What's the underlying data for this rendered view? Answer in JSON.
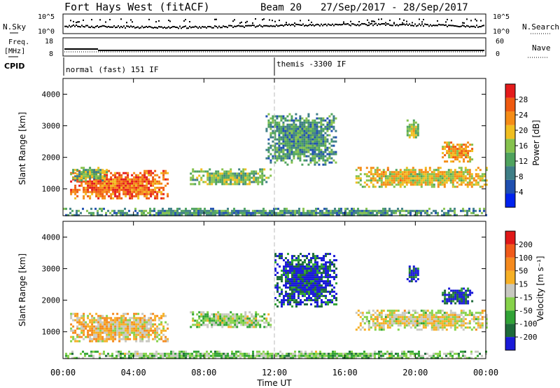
{
  "header": {
    "radar": "Fort Hays West (fitACF)",
    "beam": "Beam 20",
    "dates": "27/Sep/2017 - 28/Sep/2017"
  },
  "strips": {
    "nsky_label": "N.Sky",
    "nsky_ticks": [
      "10^5",
      "10^0"
    ],
    "nsearch_label": "N.Search",
    "nsearch_ticks": [
      "10^5",
      "10^0"
    ],
    "freq_label_1": "Freq.",
    "freq_label_2": "[MHz]",
    "freq_ticks": [
      "18",
      "8"
    ],
    "nave_label": "Nave",
    "nave_ticks": [
      "60",
      "0"
    ],
    "cpid_label": "CPID",
    "cpid_segments": [
      {
        "name": "normal (fast) 151 IF",
        "start": 0
      },
      {
        "name": "themis -3300 IF",
        "start": 12
      }
    ]
  },
  "axes": {
    "ylabel": "Slant Range [km]",
    "xlabel": "Time UT",
    "y_ticks": [
      "1000",
      "2000",
      "3000",
      "4000"
    ],
    "x_ticks": [
      "00:00",
      "04:00",
      "08:00",
      "12:00",
      "16:00",
      "20:00",
      "00:00"
    ]
  },
  "colors": {
    "power": [
      "#0022ee",
      "#1f4fb0",
      "#3e7e86",
      "#4fa35e",
      "#86c24e",
      "#f0be20",
      "#f58c16",
      "#ef5a10",
      "#e41b1b"
    ],
    "velocity": [
      "#1a1ad8",
      "#1e6a3a",
      "#31a336",
      "#86d24a",
      "#c8c8c0",
      "#f6b026",
      "#f58a1e",
      "#f05a1a",
      "#e01818"
    ]
  },
  "colorbars": {
    "power_label": "Power [dB]",
    "power_ticks": [
      "4",
      "8",
      "12",
      "16",
      "20",
      "24",
      "28"
    ],
    "velocity_label": "Velocity [m s⁻¹]",
    "velocity_ticks": [
      "-200",
      "-100",
      "-50",
      "-15",
      "15",
      "50",
      "100",
      "200"
    ]
  },
  "chart_data": [
    {
      "type": "heatmap",
      "title": "Power",
      "x_unit": "hours UT",
      "xlim": [
        0,
        24
      ],
      "ylim": [
        150,
        4500
      ],
      "colorbar": "Power [dB]",
      "colorbar_range": [
        0,
        30
      ],
      "regions": [
        {
          "t0": 0.4,
          "t1": 6.0,
          "r0": 700,
          "r1": 1600,
          "level": 24
        },
        {
          "t0": 0.4,
          "t1": 2.5,
          "r0": 1300,
          "r1": 1700,
          "level": 14
        },
        {
          "t0": 7.2,
          "t1": 11.8,
          "r0": 1150,
          "r1": 1650,
          "level": 14
        },
        {
          "t0": 11.5,
          "t1": 15.5,
          "r0": 1800,
          "r1": 3400,
          "level": 10
        },
        {
          "t0": 16.6,
          "t1": 24.0,
          "r0": 1100,
          "r1": 1700,
          "level": 18
        },
        {
          "t0": 19.5,
          "t1": 20.2,
          "r0": 2600,
          "r1": 3200,
          "level": 16
        },
        {
          "t0": 21.5,
          "t1": 23.2,
          "r0": 1900,
          "r1": 2500,
          "level": 20
        },
        {
          "t0": 0.0,
          "t1": 24.0,
          "r0": 150,
          "r1": 400,
          "level": 10
        }
      ]
    },
    {
      "type": "heatmap",
      "title": "Velocity",
      "x_unit": "hours UT",
      "xlim": [
        0,
        24
      ],
      "ylim": [
        150,
        4500
      ],
      "colorbar": "Velocity [m s-1]",
      "colorbar_range": [
        -250,
        250
      ],
      "regions": [
        {
          "t0": 0.4,
          "t1": 6.0,
          "r0": 700,
          "r1": 1600,
          "level": 40
        },
        {
          "t0": 7.2,
          "t1": 11.8,
          "r0": 1150,
          "r1": 1650,
          "level": -40
        },
        {
          "t0": 12.0,
          "t1": 15.5,
          "r0": 1800,
          "r1": 3500,
          "level": -200
        },
        {
          "t0": 16.6,
          "t1": 24.0,
          "r0": 1100,
          "r1": 1700,
          "level": 0
        },
        {
          "t0": 19.5,
          "t1": 20.2,
          "r0": 2600,
          "r1": 3100,
          "level": -200
        },
        {
          "t0": 21.5,
          "t1": 23.2,
          "r0": 1900,
          "r1": 2400,
          "level": -200
        },
        {
          "t0": 0.0,
          "t1": 24.0,
          "r0": 150,
          "r1": 400,
          "level": -60
        }
      ]
    }
  ]
}
